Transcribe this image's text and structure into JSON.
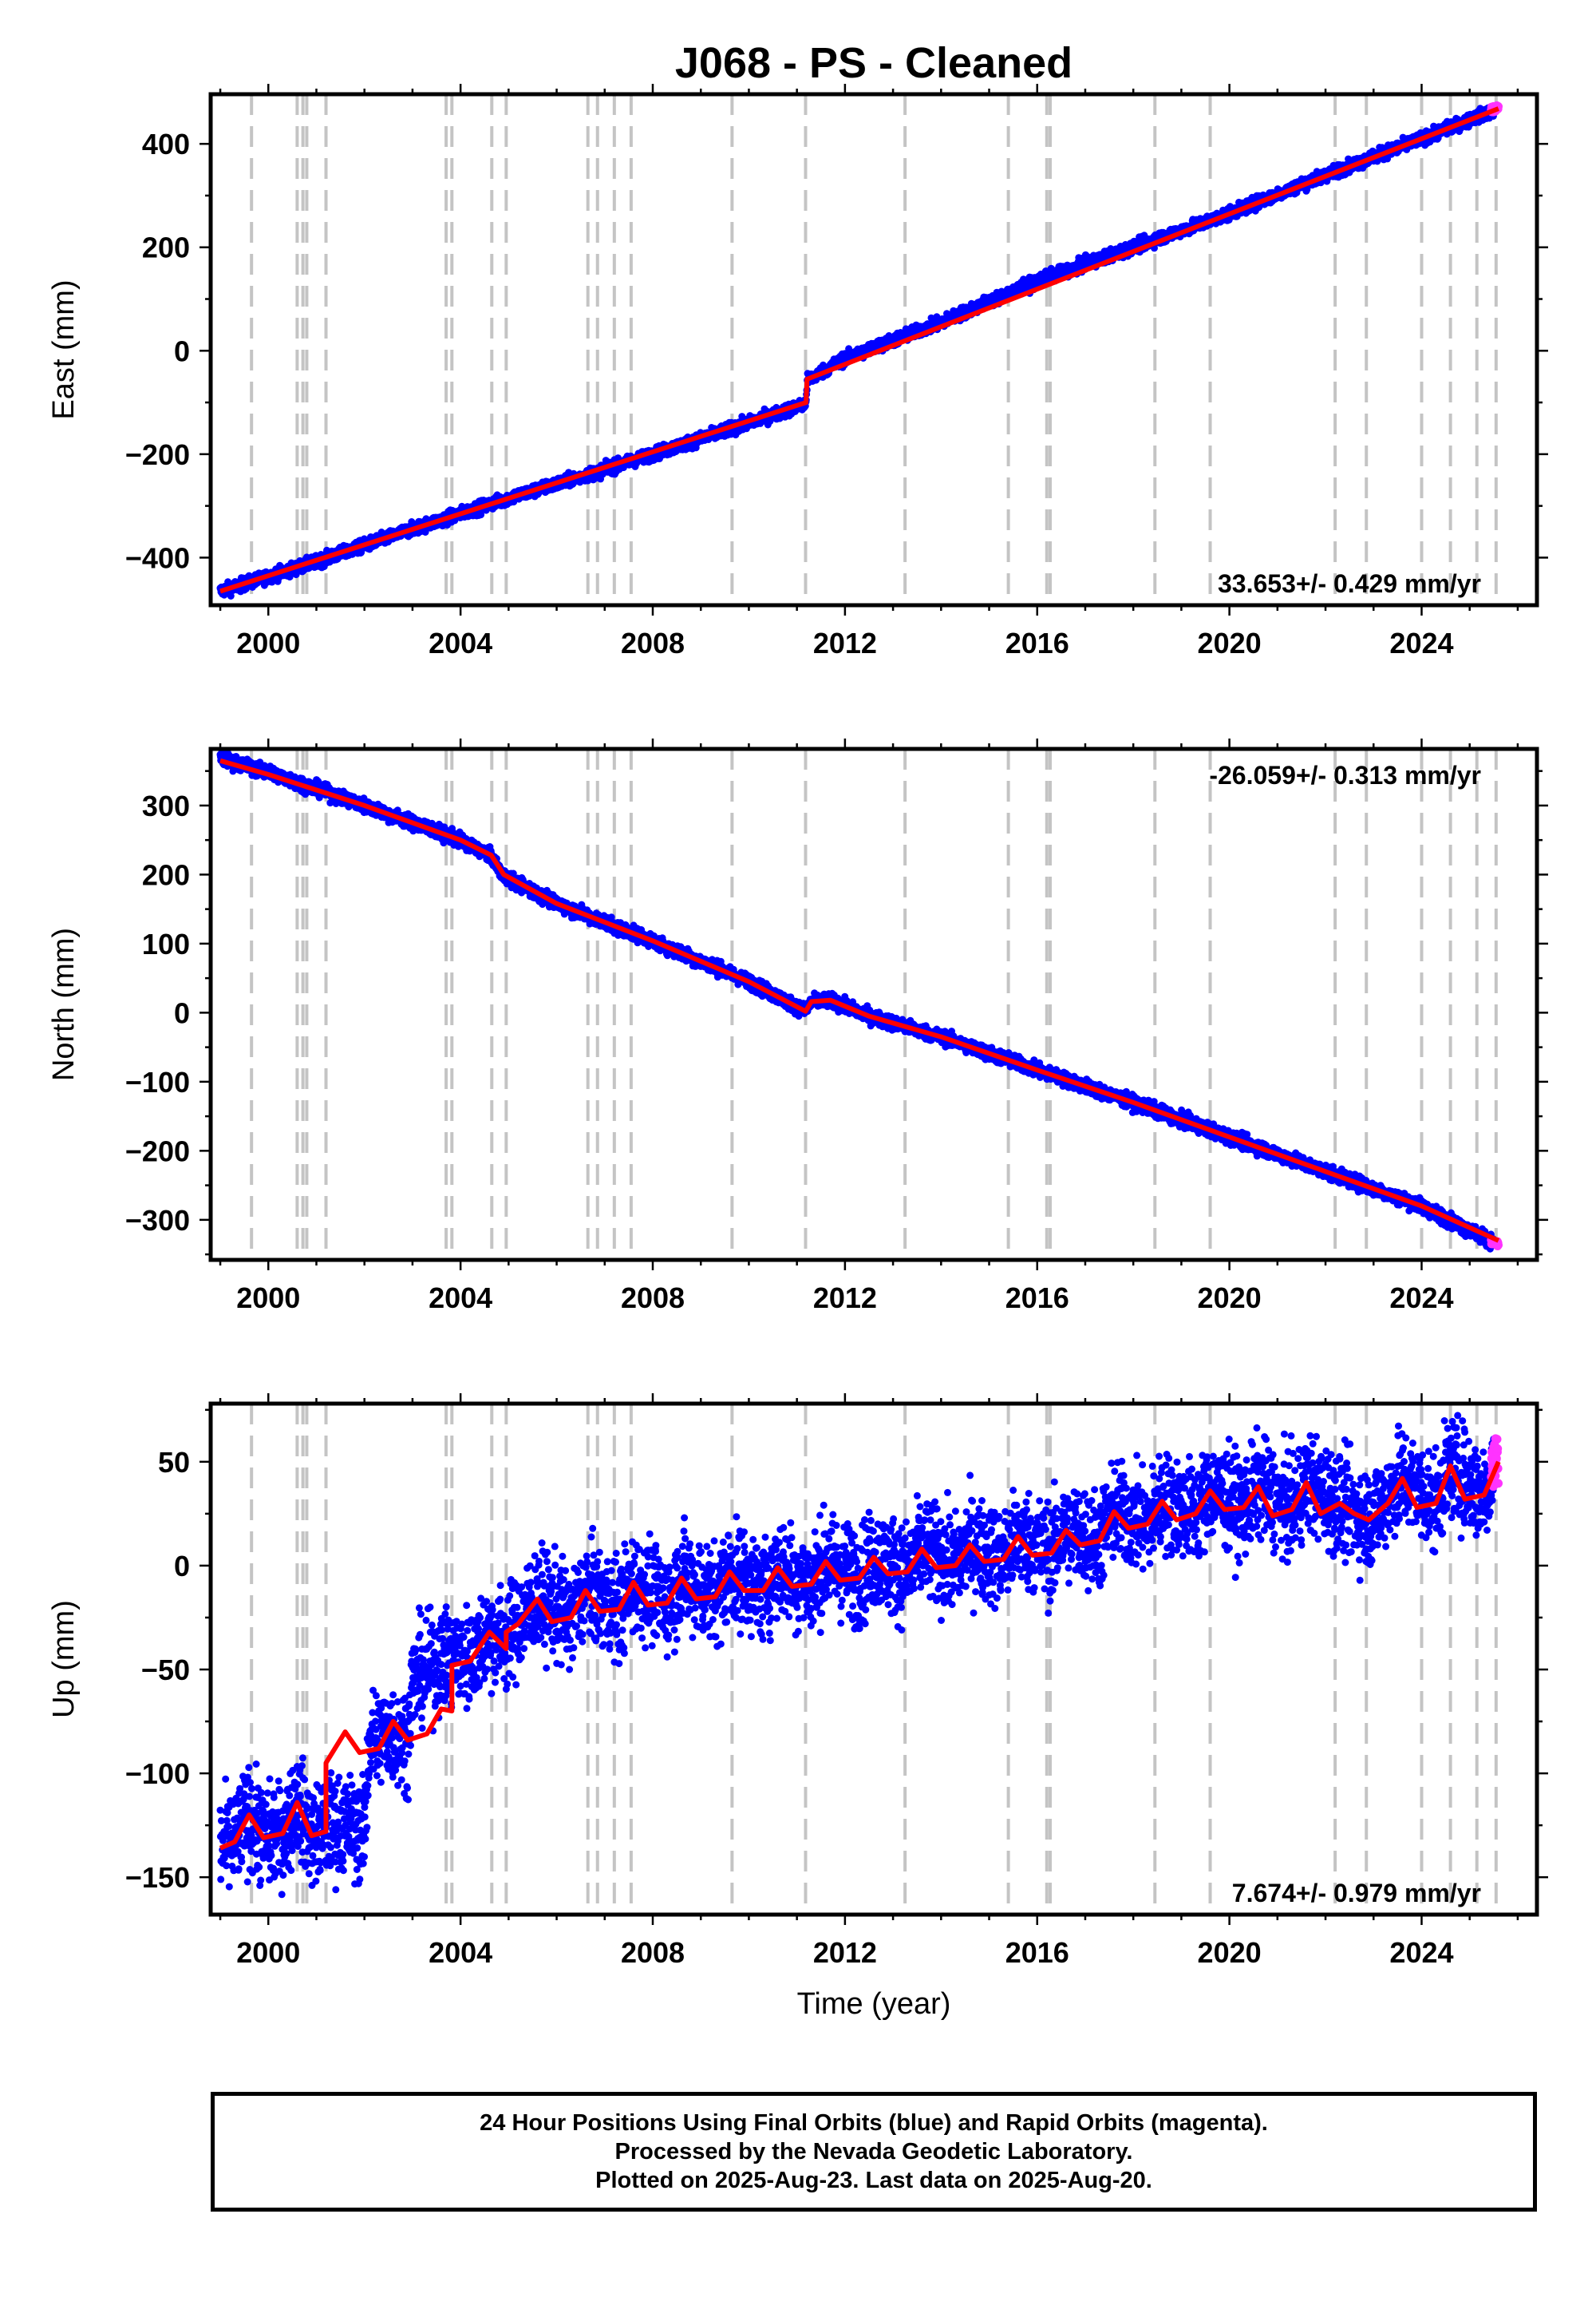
{
  "title": "J068  - PS - Cleaned",
  "footer": {
    "line1": "24 Hour Positions Using Final Orbits (blue) and Rapid Orbits (magenta).",
    "line2": "Processed by the Nevada Geodetic Laboratory.",
    "line3": "Plotted on 2025-Aug-23. Last data on 2025-Aug-20."
  },
  "colors": {
    "final_orbits": "#0000ff",
    "rapid_orbits": "#ff33ff",
    "model": "#ff0000",
    "event_lines": "#c4c4c4"
  },
  "chart_data": [
    {
      "type": "scatter",
      "ylabel": "East (mm)",
      "xlabel": "",
      "xlim": [
        1998.8,
        2026.4
      ],
      "ylim": [
        -492,
        496
      ],
      "xticks": [
        2000,
        2004,
        2008,
        2012,
        2016,
        2020,
        2024
      ],
      "yticks": [
        -400,
        -200,
        0,
        200,
        400
      ],
      "rate": "33.653+/- 0.429 mm/yr",
      "rate_position": "bottom-right",
      "event_lines": [
        1999.65,
        2000.6,
        2000.72,
        2000.8,
        2001.2,
        2003.7,
        2003.82,
        2004.65,
        2004.95,
        2006.65,
        2006.85,
        2007.2,
        2007.55,
        2009.65,
        2011.18,
        2013.25,
        2015.4,
        2016.2,
        2016.27,
        2018.45,
        2019.6,
        2022.2,
        2022.85,
        2024.0,
        2024.6,
        2025.15,
        2025.55
      ],
      "model": [
        [
          1999.0,
          -465
        ],
        [
          2011.19,
          -100
        ],
        [
          2011.21,
          -55
        ],
        [
          2025.6,
          468
        ]
      ],
      "series": [
        {
          "color": "#0000ff",
          "points": [
            [
              1999.0,
              -465
            ],
            [
              2001.0,
              -408
            ],
            [
              2003.0,
              -345
            ],
            [
              2005.0,
              -285
            ],
            [
              2007.0,
              -230
            ],
            [
              2009.0,
              -170
            ],
            [
              2011.18,
              -103
            ],
            [
              2011.22,
              -57
            ],
            [
              2012.0,
              -15
            ],
            [
              2014.0,
              55
            ],
            [
              2016.0,
              135
            ],
            [
              2018.0,
              200
            ],
            [
              2020.0,
              265
            ],
            [
              2022.0,
              340
            ],
            [
              2024.0,
              410
            ],
            [
              2025.5,
              465
            ]
          ],
          "noise": 6
        },
        {
          "color": "#ff33ff",
          "points": [
            [
              2025.45,
              465
            ],
            [
              2025.6,
              470
            ]
          ],
          "noise": 3
        }
      ]
    },
    {
      "type": "scatter",
      "ylabel": "North (mm)",
      "xlabel": "",
      "xlim": [
        1998.8,
        2026.4
      ],
      "ylim": [
        -358,
        382
      ],
      "xticks": [
        2000,
        2004,
        2008,
        2012,
        2016,
        2020,
        2024
      ],
      "yticks": [
        -300,
        -200,
        -100,
        0,
        100,
        200,
        300
      ],
      "rate": "-26.059+/- 0.313 mm/yr",
      "rate_position": "top-right",
      "event_lines": [
        1999.65,
        2000.6,
        2000.72,
        2000.8,
        2001.2,
        2003.7,
        2003.82,
        2004.65,
        2004.95,
        2006.65,
        2006.85,
        2007.2,
        2007.55,
        2009.65,
        2011.18,
        2013.25,
        2015.4,
        2016.2,
        2016.27,
        2018.45,
        2019.6,
        2022.2,
        2022.85,
        2024.0,
        2024.6,
        2025.15,
        2025.55
      ],
      "model": [
        [
          1999.0,
          365
        ],
        [
          2000.0,
          345
        ],
        [
          2002.0,
          300
        ],
        [
          2004.0,
          250
        ],
        [
          2004.64,
          228
        ],
        [
          2004.9,
          200
        ],
        [
          2006.0,
          158
        ],
        [
          2008.0,
          104
        ],
        [
          2010.0,
          45
        ],
        [
          2011.18,
          2
        ],
        [
          2011.3,
          16
        ],
        [
          2011.7,
          18
        ],
        [
          2012.5,
          -5
        ],
        [
          2014.0,
          -35
        ],
        [
          2016.0,
          -83
        ],
        [
          2018.0,
          -130
        ],
        [
          2020.0,
          -180
        ],
        [
          2022.0,
          -230
        ],
        [
          2024.0,
          -280
        ],
        [
          2025.6,
          -330
        ]
      ],
      "series": [
        {
          "color": "#0000ff",
          "points": [
            [
              1999.0,
              368
            ],
            [
              2000.0,
              348
            ],
            [
              2002.0,
              300
            ],
            [
              2004.0,
              250
            ],
            [
              2004.64,
              226
            ],
            [
              2004.9,
              198
            ],
            [
              2006.0,
              158
            ],
            [
              2008.0,
              104
            ],
            [
              2010.0,
              45
            ],
            [
              2011.18,
              2
            ],
            [
              2011.3,
              16
            ],
            [
              2011.7,
              18
            ],
            [
              2012.5,
              -5
            ],
            [
              2014.0,
              -35
            ],
            [
              2016.0,
              -83
            ],
            [
              2018.0,
              -130
            ],
            [
              2020.0,
              -180
            ],
            [
              2022.0,
              -230
            ],
            [
              2024.0,
              -280
            ],
            [
              2025.5,
              -333
            ]
          ],
          "noise": 5
        },
        {
          "color": "#ff33ff",
          "points": [
            [
              2025.45,
              -332
            ],
            [
              2025.6,
              -335
            ]
          ],
          "noise": 2
        }
      ]
    },
    {
      "type": "scatter",
      "ylabel": "Up (mm)",
      "xlabel": "Time (year)",
      "xlim": [
        1998.8,
        2026.4
      ],
      "ylim": [
        -168,
        78
      ],
      "xticks": [
        2000,
        2004,
        2008,
        2012,
        2016,
        2020,
        2024
      ],
      "yticks": [
        -150,
        -100,
        -50,
        0,
        50
      ],
      "rate": "7.674+/- 0.979 mm/yr",
      "rate_position": "bottom-right",
      "event_lines": [
        1999.65,
        2000.6,
        2000.72,
        2000.8,
        2001.2,
        2003.7,
        2003.82,
        2004.65,
        2004.95,
        2006.65,
        2006.85,
        2007.2,
        2007.55,
        2009.65,
        2011.18,
        2013.25,
        2015.4,
        2016.2,
        2016.27,
        2018.45,
        2019.6,
        2022.2,
        2022.85,
        2024.0,
        2024.6,
        2025.15,
        2025.55
      ],
      "model": [
        [
          1999.0,
          -136
        ],
        [
          1999.3,
          -133
        ],
        [
          1999.6,
          -120
        ],
        [
          1999.9,
          -131
        ],
        [
          2000.3,
          -129
        ],
        [
          2000.6,
          -114
        ],
        [
          2000.9,
          -130
        ],
        [
          2001.2,
          -128
        ],
        [
          2001.2,
          -95
        ],
        [
          2001.6,
          -80
        ],
        [
          2001.9,
          -90
        ],
        [
          2002.3,
          -88
        ],
        [
          2002.6,
          -75
        ],
        [
          2002.9,
          -84
        ],
        [
          2003.3,
          -81
        ],
        [
          2003.6,
          -69
        ],
        [
          2003.82,
          -70
        ],
        [
          2003.82,
          -48
        ],
        [
          2004.2,
          -46
        ],
        [
          2004.6,
          -32
        ],
        [
          2004.95,
          -40
        ],
        [
          2004.95,
          -32
        ],
        [
          2005.2,
          -28
        ],
        [
          2005.6,
          -16
        ],
        [
          2005.9,
          -27
        ],
        [
          2006.3,
          -25
        ],
        [
          2006.6,
          -12
        ],
        [
          2006.9,
          -22
        ],
        [
          2007.3,
          -21
        ],
        [
          2007.6,
          -8
        ],
        [
          2007.9,
          -19
        ],
        [
          2008.3,
          -18
        ],
        [
          2008.6,
          -6
        ],
        [
          2008.9,
          -16
        ],
        [
          2009.3,
          -15
        ],
        [
          2009.6,
          -3
        ],
        [
          2009.9,
          -12
        ],
        [
          2010.3,
          -12
        ],
        [
          2010.6,
          -1
        ],
        [
          2010.9,
          -10
        ],
        [
          2011.3,
          -9
        ],
        [
          2011.6,
          2
        ],
        [
          2011.9,
          -7
        ],
        [
          2012.3,
          -6
        ],
        [
          2012.6,
          4
        ],
        [
          2012.9,
          -4
        ],
        [
          2013.3,
          -3
        ],
        [
          2013.6,
          8
        ],
        [
          2013.9,
          -1
        ],
        [
          2014.3,
          0
        ],
        [
          2014.6,
          10
        ],
        [
          2014.9,
          2
        ],
        [
          2015.3,
          3
        ],
        [
          2015.6,
          14
        ],
        [
          2015.9,
          5
        ],
        [
          2016.3,
          6
        ],
        [
          2016.6,
          17
        ],
        [
          2016.9,
          10
        ],
        [
          2017.3,
          12
        ],
        [
          2017.6,
          26
        ],
        [
          2017.9,
          18
        ],
        [
          2018.3,
          20
        ],
        [
          2018.6,
          31
        ],
        [
          2018.9,
          22
        ],
        [
          2019.3,
          25
        ],
        [
          2019.6,
          36
        ],
        [
          2019.9,
          27
        ],
        [
          2020.3,
          28
        ],
        [
          2020.6,
          38
        ],
        [
          2020.9,
          24
        ],
        [
          2021.3,
          27
        ],
        [
          2021.6,
          40
        ],
        [
          2021.9,
          25
        ],
        [
          2022.3,
          30
        ],
        [
          2022.6,
          25
        ],
        [
          2022.9,
          22
        ],
        [
          2023.3,
          30
        ],
        [
          2023.6,
          42
        ],
        [
          2023.9,
          28
        ],
        [
          2024.3,
          30
        ],
        [
          2024.6,
          48
        ],
        [
          2024.9,
          32
        ],
        [
          2025.3,
          34
        ],
        [
          2025.6,
          50
        ]
      ],
      "series": [
        {
          "color": "#0000ff",
          "points": [
            [
              1999.0,
              -136
            ],
            [
              1999.3,
              -133
            ],
            [
              1999.6,
              -120
            ],
            [
              1999.9,
              -131
            ],
            [
              2000.3,
              -129
            ],
            [
              2000.6,
              -114
            ],
            [
              2000.9,
              -130
            ],
            [
              2001.2,
              -128
            ],
            [
              2001.25,
              -125
            ],
            [
              2001.6,
              -125
            ],
            [
              2002.0,
              -128
            ],
            [
              2002.1,
              -85
            ],
            [
              2002.5,
              -80
            ],
            [
              2002.9,
              -84
            ],
            [
              2003.0,
              -55
            ],
            [
              2003.6,
              -45
            ],
            [
              2004.2,
              -44
            ],
            [
              2004.6,
              -32
            ],
            [
              2004.95,
              -36
            ],
            [
              2005.6,
              -16
            ],
            [
              2006.3,
              -25
            ],
            [
              2006.6,
              -12
            ],
            [
              2007.3,
              -21
            ],
            [
              2007.6,
              -8
            ],
            [
              2008.3,
              -18
            ],
            [
              2008.6,
              -6
            ],
            [
              2009.3,
              -15
            ],
            [
              2009.6,
              -3
            ],
            [
              2010.3,
              -12
            ],
            [
              2010.6,
              -1
            ],
            [
              2011.3,
              -9
            ],
            [
              2011.6,
              2
            ],
            [
              2012.3,
              -6
            ],
            [
              2012.6,
              4
            ],
            [
              2013.3,
              -3
            ],
            [
              2013.6,
              8
            ],
            [
              2014.3,
              0
            ],
            [
              2014.6,
              10
            ],
            [
              2015.3,
              3
            ],
            [
              2015.6,
              14
            ],
            [
              2016.3,
              6
            ],
            [
              2016.6,
              17
            ],
            [
              2017.3,
              12
            ],
            [
              2017.6,
              26
            ],
            [
              2018.3,
              20
            ],
            [
              2018.6,
              31
            ],
            [
              2019.3,
              25
            ],
            [
              2019.6,
              36
            ],
            [
              2020.3,
              28
            ],
            [
              2020.6,
              38
            ],
            [
              2021.3,
              27
            ],
            [
              2021.6,
              40
            ],
            [
              2022.3,
              30
            ],
            [
              2022.9,
              22
            ],
            [
              2023.6,
              42
            ],
            [
              2024.3,
              30
            ],
            [
              2024.6,
              48
            ],
            [
              2025.3,
              34
            ],
            [
              2025.5,
              48
            ]
          ],
          "noise": 12
        },
        {
          "color": "#ff33ff",
          "points": [
            [
              2025.45,
              46
            ],
            [
              2025.6,
              55
            ]
          ],
          "noise": 7
        }
      ]
    }
  ]
}
